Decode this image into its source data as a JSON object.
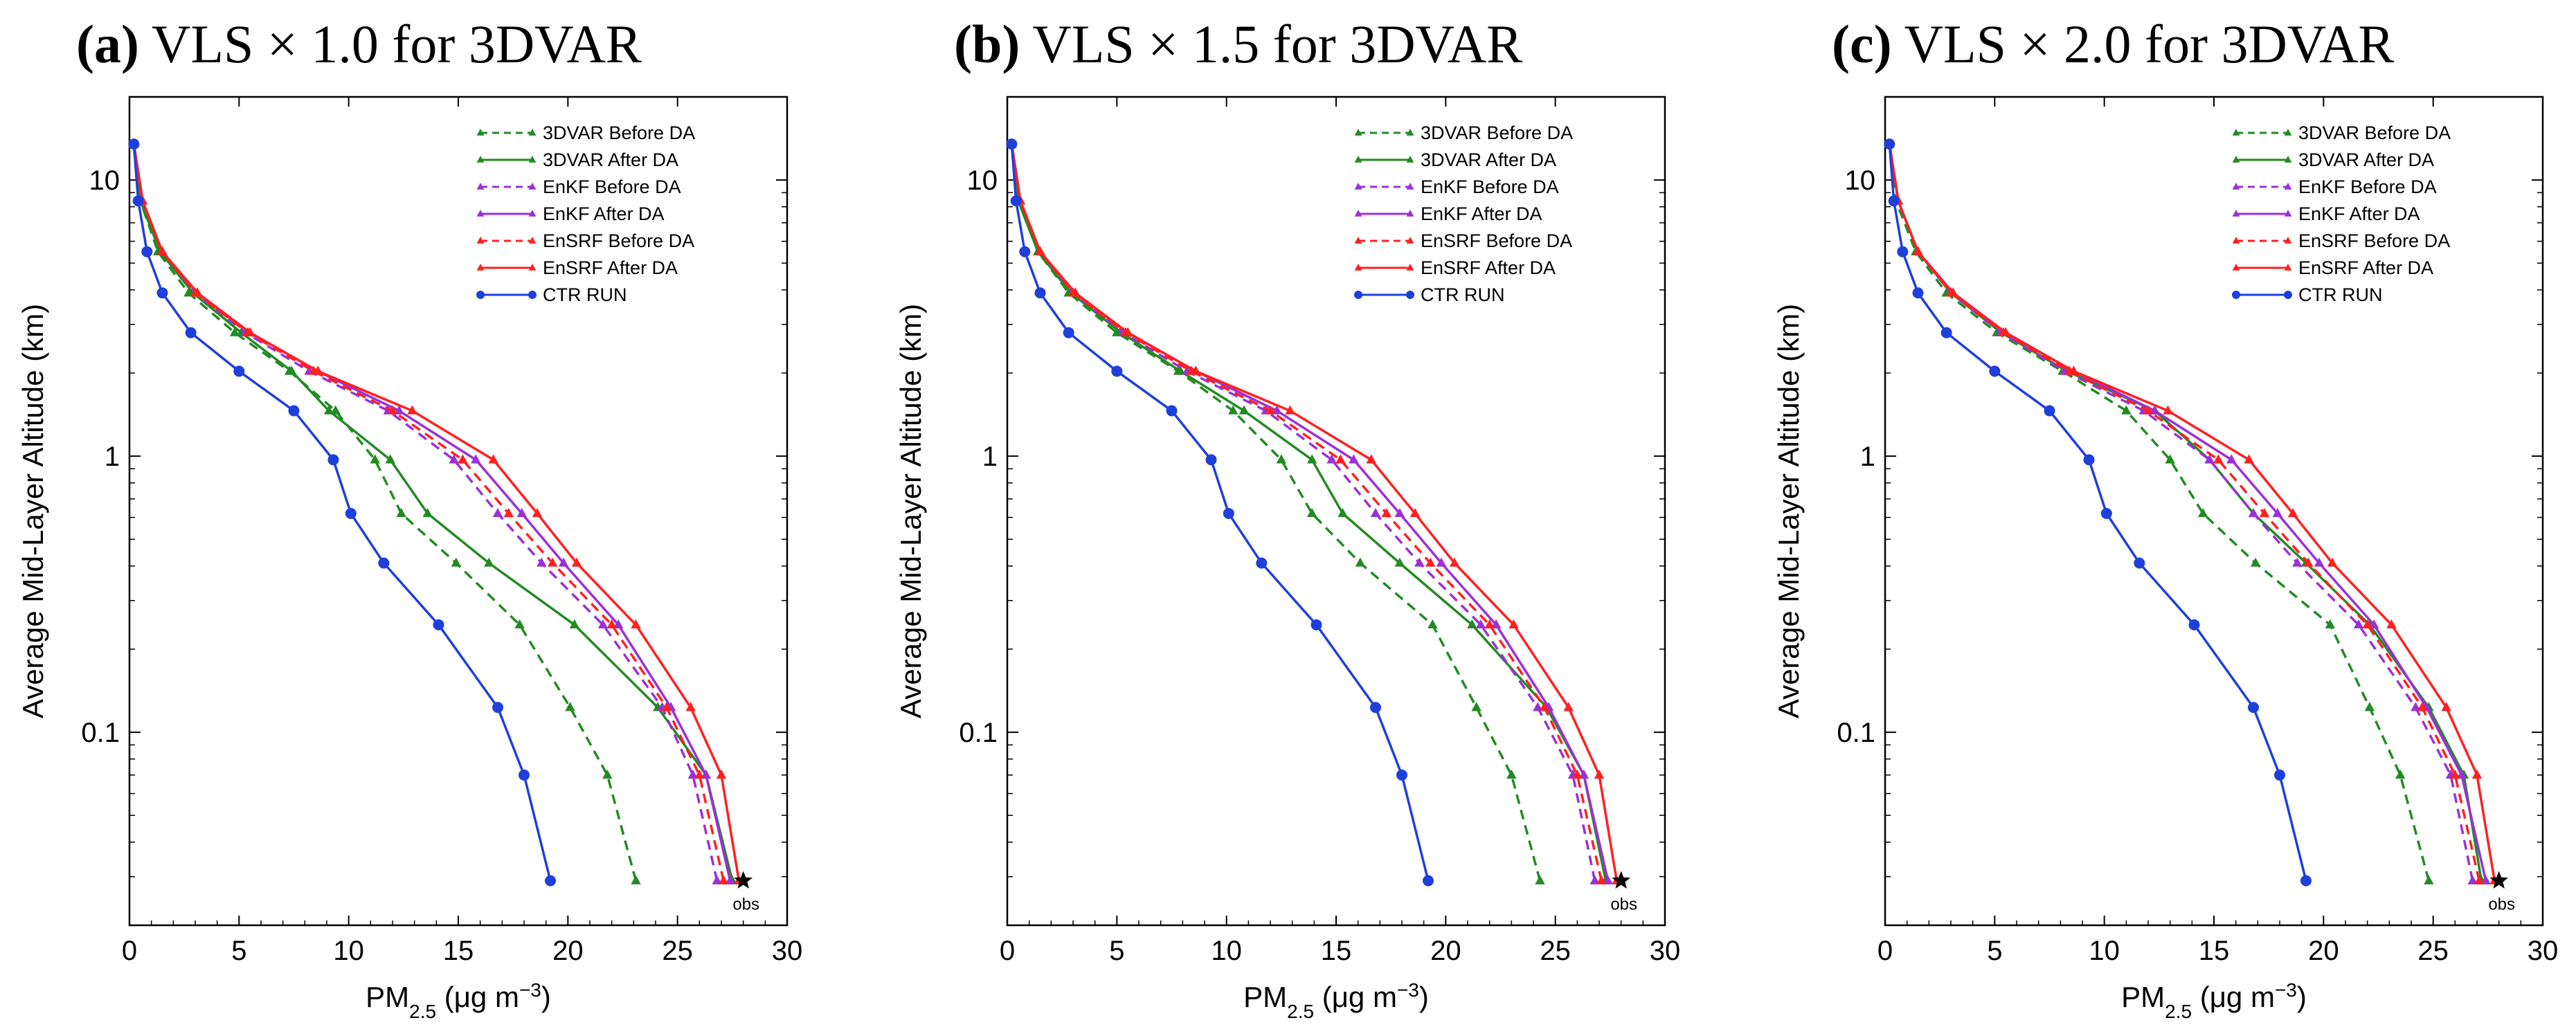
{
  "chart_data": [
    {
      "type": "line",
      "panel_label": "(a)",
      "title_text": "VLS × 1.0 for 3DVAR",
      "xlabel": "PM2.5 (μg m⁻³)",
      "xlabel_main": "PM",
      "xlabel_sub": "2.5",
      "xlabel_rest": " (μg m",
      "xlabel_sup": "−3",
      "xlabel_close": ")",
      "ylabel": "Average Mid-Layer Altitude (km)",
      "xlim": [
        0,
        30
      ],
      "ylim": [
        0.02,
        20
      ],
      "yscale": "log",
      "x_ticks": [
        "0",
        "5",
        "10",
        "15",
        "20",
        "25",
        "30"
      ],
      "y_ticks": [
        "0.1",
        "1",
        "10"
      ],
      "legend": [
        "3DVAR Before DA",
        "3DVAR After DA",
        "EnKF Before DA",
        "EnKF After DA",
        "EnSRF Before DA",
        "EnSRF After DA",
        "CTR RUN"
      ],
      "altitudes_km": [
        0.029,
        0.07,
        0.123,
        0.245,
        0.41,
        0.62,
        0.97,
        1.46,
        2.03,
        2.8,
        3.9,
        5.5,
        8.4,
        13.5
      ],
      "series": [
        {
          "name": "3DVAR Before DA",
          "color": "#228b22",
          "dashed": true,
          "marker": "triangle",
          "values": [
            23.1,
            21.8,
            20.1,
            17.8,
            14.9,
            12.4,
            11.2,
            9.4,
            7.3,
            4.8,
            2.7,
            1.3,
            0.5,
            0.2
          ]
        },
        {
          "name": "3DVAR After DA",
          "color": "#228b22",
          "dashed": false,
          "marker": "triangle",
          "values": [
            27.5,
            26.3,
            24.1,
            20.3,
            16.4,
            13.6,
            11.9,
            9.1,
            7.4,
            5.1,
            2.9,
            1.4,
            0.5,
            0.2
          ]
        },
        {
          "name": "EnKF Before DA",
          "color": "#9b30d9",
          "dashed": true,
          "marker": "triangle",
          "values": [
            26.8,
            25.7,
            24.3,
            21.6,
            18.8,
            16.8,
            14.8,
            11.8,
            8.2,
            5.3,
            3.0,
            1.5,
            0.6,
            0.2
          ]
        },
        {
          "name": "EnKF After DA",
          "color": "#9b30d9",
          "dashed": false,
          "marker": "triangle",
          "values": [
            27.4,
            26.3,
            24.7,
            22.3,
            19.8,
            17.9,
            15.8,
            12.3,
            8.6,
            5.5,
            3.1,
            1.5,
            0.6,
            0.2
          ]
        },
        {
          "name": "EnSRF Before DA",
          "color": "#ff2020",
          "dashed": true,
          "marker": "triangle",
          "values": [
            27.1,
            26.0,
            24.5,
            22.0,
            19.3,
            17.3,
            15.2,
            12.0,
            8.4,
            5.4,
            3.0,
            1.5,
            0.6,
            0.2
          ]
        },
        {
          "name": "EnSRF After DA",
          "color": "#ff2020",
          "dashed": false,
          "marker": "triangle",
          "values": [
            27.8,
            27.0,
            25.6,
            23.1,
            20.4,
            18.6,
            16.6,
            12.9,
            8.6,
            5.5,
            3.1,
            1.5,
            0.6,
            0.2
          ]
        },
        {
          "name": "CTR RUN",
          "color": "#1f3fdd",
          "dashed": false,
          "marker": "circle",
          "values": [
            19.2,
            18.0,
            16.8,
            14.1,
            11.6,
            10.1,
            9.3,
            7.5,
            5.0,
            2.8,
            1.5,
            0.8,
            0.4,
            0.2
          ]
        }
      ],
      "obs": {
        "label": "obs",
        "x": 28.0,
        "y": 0.029
      }
    },
    {
      "type": "line",
      "panel_label": "(b)",
      "title_text": "VLS × 1.5 for 3DVAR",
      "xlabel": "PM2.5 (μg m⁻³)",
      "xlabel_main": "PM",
      "xlabel_sub": "2.5",
      "xlabel_rest": " (μg m",
      "xlabel_sup": "−3",
      "xlabel_close": ")",
      "ylabel": "Average Mid-Layer Altitude (km)",
      "xlim": [
        0,
        30
      ],
      "ylim": [
        0.02,
        20
      ],
      "yscale": "log",
      "x_ticks": [
        "0",
        "5",
        "10",
        "15",
        "20",
        "25",
        "30"
      ],
      "y_ticks": [
        "0.1",
        "1",
        "10"
      ],
      "legend": [
        "3DVAR Before DA",
        "3DVAR After DA",
        "EnKF Before DA",
        "EnKF After DA",
        "EnSRF Before DA",
        "EnSRF After DA",
        "CTR RUN"
      ],
      "altitudes_km": [
        0.029,
        0.07,
        0.123,
        0.245,
        0.41,
        0.62,
        0.97,
        1.46,
        2.03,
        2.8,
        3.9,
        5.5,
        8.4,
        13.5
      ],
      "series": [
        {
          "name": "3DVAR Before DA",
          "color": "#228b22",
          "dashed": true,
          "marker": "triangle",
          "values": [
            24.3,
            23.0,
            21.4,
            19.4,
            16.1,
            13.9,
            12.5,
            10.3,
            7.8,
            5.0,
            2.8,
            1.4,
            0.5,
            0.2
          ]
        },
        {
          "name": "3DVAR After DA",
          "color": "#228b22",
          "dashed": false,
          "marker": "triangle",
          "values": [
            27.3,
            26.3,
            24.6,
            21.2,
            17.9,
            15.3,
            13.9,
            10.8,
            7.9,
            5.2,
            2.9,
            1.4,
            0.5,
            0.2
          ]
        },
        {
          "name": "EnKF Before DA",
          "color": "#9b30d9",
          "dashed": true,
          "marker": "triangle",
          "values": [
            26.8,
            25.8,
            24.2,
            21.6,
            18.8,
            16.8,
            14.8,
            11.8,
            8.2,
            5.3,
            3.0,
            1.5,
            0.6,
            0.2
          ]
        },
        {
          "name": "EnKF After DA",
          "color": "#9b30d9",
          "dashed": false,
          "marker": "triangle",
          "values": [
            27.4,
            26.3,
            24.7,
            22.3,
            19.8,
            17.9,
            15.8,
            12.3,
            8.6,
            5.5,
            3.1,
            1.5,
            0.6,
            0.2
          ]
        },
        {
          "name": "EnSRF Before DA",
          "color": "#ff2020",
          "dashed": true,
          "marker": "triangle",
          "values": [
            27.1,
            26.0,
            24.5,
            22.0,
            19.3,
            17.3,
            15.2,
            12.0,
            8.4,
            5.4,
            3.0,
            1.5,
            0.6,
            0.2
          ]
        },
        {
          "name": "EnSRF After DA",
          "color": "#ff2020",
          "dashed": false,
          "marker": "triangle",
          "values": [
            27.8,
            27.0,
            25.6,
            23.1,
            20.4,
            18.6,
            16.6,
            12.9,
            8.6,
            5.5,
            3.1,
            1.5,
            0.6,
            0.2
          ]
        },
        {
          "name": "CTR RUN",
          "color": "#1f3fdd",
          "dashed": false,
          "marker": "circle",
          "values": [
            19.2,
            18.0,
            16.8,
            14.1,
            11.6,
            10.1,
            9.3,
            7.5,
            5.0,
            2.8,
            1.5,
            0.8,
            0.4,
            0.2
          ]
        }
      ],
      "obs": {
        "label": "obs",
        "x": 28.0,
        "y": 0.029
      }
    },
    {
      "type": "line",
      "panel_label": "(c)",
      "title_text": "VLS × 2.0 for 3DVAR",
      "xlabel": "PM2.5 (μg m⁻³)",
      "xlabel_main": "PM",
      "xlabel_sub": "2.5",
      "xlabel_rest": " (μg m",
      "xlabel_sup": "−3",
      "xlabel_close": ")",
      "ylabel": "Average Mid-Layer Altitude (km)",
      "xlim": [
        0,
        30
      ],
      "ylim": [
        0.02,
        20
      ],
      "yscale": "log",
      "x_ticks": [
        "0",
        "5",
        "10",
        "15",
        "20",
        "25",
        "30"
      ],
      "y_ticks": [
        "0.1",
        "1",
        "10"
      ],
      "legend": [
        "3DVAR Before DA",
        "3DVAR After DA",
        "EnKF Before DA",
        "EnKF After DA",
        "EnSRF Before DA",
        "EnSRF After DA",
        "CTR RUN"
      ],
      "altitudes_km": [
        0.029,
        0.07,
        0.123,
        0.245,
        0.41,
        0.62,
        0.97,
        1.46,
        2.03,
        2.8,
        3.9,
        5.5,
        8.4,
        13.5
      ],
      "series": [
        {
          "name": "3DVAR Before DA",
          "color": "#228b22",
          "dashed": true,
          "marker": "triangle",
          "values": [
            24.8,
            23.5,
            22.1,
            20.3,
            16.9,
            14.5,
            13.0,
            11.0,
            8.1,
            5.1,
            2.8,
            1.4,
            0.5,
            0.2
          ]
        },
        {
          "name": "3DVAR After DA",
          "color": "#228b22",
          "dashed": false,
          "marker": "triangle",
          "values": [
            27.2,
            26.4,
            24.8,
            22.1,
            19.2,
            16.8,
            14.8,
            12.3,
            8.3,
            5.3,
            3.0,
            1.5,
            0.6,
            0.2
          ]
        },
        {
          "name": "EnKF Before DA",
          "color": "#9b30d9",
          "dashed": true,
          "marker": "triangle",
          "values": [
            26.8,
            25.8,
            24.2,
            21.6,
            18.8,
            16.8,
            14.8,
            11.8,
            8.2,
            5.3,
            3.0,
            1.5,
            0.6,
            0.2
          ]
        },
        {
          "name": "EnKF After DA",
          "color": "#9b30d9",
          "dashed": false,
          "marker": "triangle",
          "values": [
            27.4,
            26.3,
            24.7,
            22.3,
            19.8,
            17.9,
            15.8,
            12.3,
            8.6,
            5.5,
            3.1,
            1.5,
            0.6,
            0.2
          ]
        },
        {
          "name": "EnSRF Before DA",
          "color": "#ff2020",
          "dashed": true,
          "marker": "triangle",
          "values": [
            27.1,
            26.0,
            24.5,
            22.0,
            19.3,
            17.3,
            15.2,
            12.0,
            8.4,
            5.4,
            3.0,
            1.5,
            0.6,
            0.2
          ]
        },
        {
          "name": "EnSRF After DA",
          "color": "#ff2020",
          "dashed": false,
          "marker": "triangle",
          "values": [
            27.8,
            27.0,
            25.6,
            23.1,
            20.4,
            18.6,
            16.6,
            12.9,
            8.6,
            5.5,
            3.1,
            1.5,
            0.6,
            0.2
          ]
        },
        {
          "name": "CTR RUN",
          "color": "#1f3fdd",
          "dashed": false,
          "marker": "circle",
          "values": [
            19.2,
            18.0,
            16.8,
            14.1,
            11.6,
            10.1,
            9.3,
            7.5,
            5.0,
            2.8,
            1.5,
            0.8,
            0.4,
            0.2
          ]
        }
      ],
      "obs": {
        "label": "obs",
        "x": 28.0,
        "y": 0.029
      }
    }
  ]
}
